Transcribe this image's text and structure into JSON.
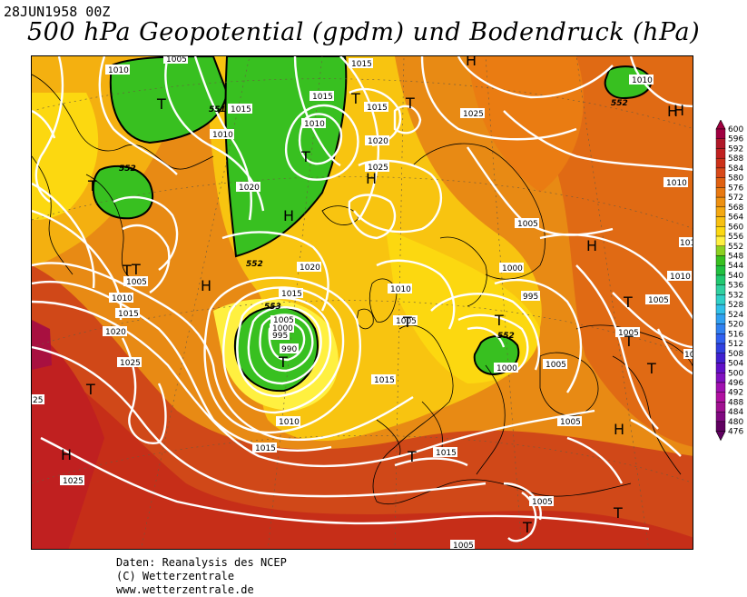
{
  "header": {
    "date": "28JUN1958 00Z",
    "title": "500 hPa Geopotential (gpdm) und Bodendruck (hPa)"
  },
  "credits": {
    "line1": "Daten: Reanalysis des NCEP",
    "line2": "(C) Wetterzentrale",
    "line3": "www.wetterzentrale.de"
  },
  "legend": {
    "values": [
      "600",
      "596",
      "592",
      "588",
      "584",
      "580",
      "576",
      "572",
      "568",
      "564",
      "560",
      "556",
      "552",
      "548",
      "544",
      "540",
      "536",
      "532",
      "528",
      "524",
      "520",
      "516",
      "512",
      "508",
      "504",
      "500",
      "496",
      "492",
      "488",
      "484",
      "480",
      "476"
    ],
    "colors": [
      "#a00040",
      "#b01828",
      "#c02020",
      "#cc3018",
      "#d84818",
      "#e06010",
      "#e87810",
      "#ee9010",
      "#f4a810",
      "#f8c010",
      "#fcd810",
      "#fff040",
      "#8cd020",
      "#38c020",
      "#20c040",
      "#20c870",
      "#30d0a0",
      "#30d0c8",
      "#30c0e8",
      "#30a0f0",
      "#3080f0",
      "#3060f0",
      "#3040e0",
      "#4020d0",
      "#6010c8",
      "#8010c0",
      "#a010b0",
      "#b010a0",
      "#a01090",
      "#800880",
      "#600060"
    ]
  },
  "map": {
    "pressure_labels": [
      {
        "text": "1010",
        "id": "p1"
      },
      {
        "text": "1005",
        "id": "p2"
      },
      {
        "text": "1015",
        "id": "p3"
      },
      {
        "text": "1015",
        "id": "p4"
      },
      {
        "text": "1015",
        "id": "p5"
      },
      {
        "text": "1010",
        "id": "p6"
      },
      {
        "text": "1010",
        "id": "p7"
      },
      {
        "text": "1020",
        "id": "p8"
      },
      {
        "text": "1025",
        "id": "p9"
      },
      {
        "text": "1020",
        "id": "p10"
      },
      {
        "text": "1025",
        "id": "p11"
      },
      {
        "text": "1010",
        "id": "p12"
      },
      {
        "text": "1005",
        "id": "p13"
      },
      {
        "text": "1010",
        "id": "p14"
      },
      {
        "text": "1015",
        "id": "p15"
      },
      {
        "text": "1020",
        "id": "p16"
      },
      {
        "text": "1025",
        "id": "p17"
      },
      {
        "text": "25",
        "id": "p18"
      },
      {
        "text": "1020",
        "id": "p19"
      },
      {
        "text": "1015",
        "id": "p20"
      },
      {
        "text": "1005",
        "id": "p21"
      },
      {
        "text": "1000",
        "id": "p22"
      },
      {
        "text": "995",
        "id": "p23"
      },
      {
        "text": "990",
        "id": "p24"
      },
      {
        "text": "1010",
        "id": "p25"
      },
      {
        "text": "1015",
        "id": "p26"
      },
      {
        "text": "1025",
        "id": "p27"
      },
      {
        "text": "1005",
        "id": "p28"
      },
      {
        "text": "1000",
        "id": "p29"
      },
      {
        "text": "1010",
        "id": "p30"
      },
      {
        "text": "995",
        "id": "p31"
      },
      {
        "text": "1005",
        "id": "p32"
      },
      {
        "text": "1000",
        "id": "p33"
      },
      {
        "text": "1015",
        "id": "p34"
      },
      {
        "text": "1005",
        "id": "p35"
      },
      {
        "text": "1015",
        "id": "p36"
      },
      {
        "text": "1010",
        "id": "p37"
      },
      {
        "text": "1005",
        "id": "p38"
      },
      {
        "text": "1005",
        "id": "p39"
      },
      {
        "text": "1005",
        "id": "p40"
      },
      {
        "text": "1010",
        "id": "p41"
      },
      {
        "text": "1010",
        "id": "p42"
      },
      {
        "text": "1005",
        "id": "p43"
      },
      {
        "text": "1010",
        "id": "p44"
      },
      {
        "text": "1005",
        "id": "p45"
      },
      {
        "text": "1015",
        "id": "p46"
      }
    ],
    "centers": [
      {
        "text": "T",
        "id": "c1"
      },
      {
        "text": "T",
        "id": "c2"
      },
      {
        "text": "T",
        "id": "c3"
      },
      {
        "text": "T",
        "id": "c4"
      },
      {
        "text": "H",
        "id": "c5"
      },
      {
        "text": "H",
        "id": "c6"
      },
      {
        "text": "T",
        "id": "c7"
      },
      {
        "text": "H",
        "id": "c8"
      },
      {
        "text": "T",
        "id": "c9"
      },
      {
        "text": "T",
        "id": "c10"
      },
      {
        "text": "H",
        "id": "c11"
      },
      {
        "text": "T",
        "id": "c12"
      },
      {
        "text": "T",
        "id": "c13"
      },
      {
        "text": "T",
        "id": "c14"
      },
      {
        "text": "H",
        "id": "c15"
      },
      {
        "text": "T",
        "id": "c16"
      },
      {
        "text": "H",
        "id": "c17"
      },
      {
        "text": "H",
        "id": "c18"
      },
      {
        "text": "T",
        "id": "c19"
      },
      {
        "text": "T",
        "id": "c20"
      },
      {
        "text": "T",
        "id": "c21"
      },
      {
        "text": "T",
        "id": "c22"
      },
      {
        "text": "T",
        "id": "c23"
      },
      {
        "text": "H",
        "id": "c24"
      },
      {
        "text": "T",
        "id": "c25"
      },
      {
        "text": "H",
        "id": "c26"
      }
    ],
    "gpdm_labels": [
      {
        "text": "552",
        "id": "g1"
      },
      {
        "text": "551",
        "id": "g2"
      },
      {
        "text": "552",
        "id": "g3"
      },
      {
        "text": "552",
        "id": "g4"
      },
      {
        "text": "553",
        "id": "g5"
      },
      {
        "text": "552",
        "id": "g6"
      }
    ]
  }
}
